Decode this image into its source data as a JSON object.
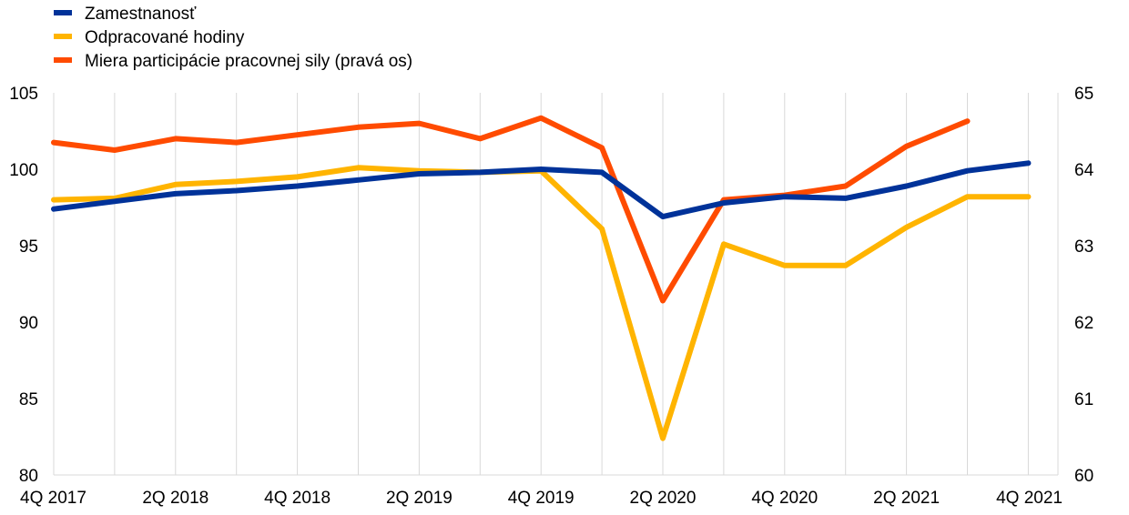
{
  "chart_data": {
    "type": "line",
    "title": "",
    "xlabel": "",
    "ylabel": "",
    "categories": [
      "4Q 2017",
      "1Q 2018",
      "2Q 2018",
      "3Q 2018",
      "4Q 2018",
      "1Q 2019",
      "2Q 2019",
      "3Q 2019",
      "4Q 2019",
      "1Q 2020",
      "2Q 2020",
      "3Q 2020",
      "4Q 2020",
      "1Q 2021",
      "2Q 2021",
      "3Q 2021",
      "4Q 2021"
    ],
    "x_tick_labels": [
      "4Q 2017",
      "2Q 2018",
      "4Q 2018",
      "2Q 2019",
      "4Q 2019",
      "2Q 2020",
      "4Q 2020",
      "2Q 2021",
      "4Q 2021"
    ],
    "ylim_left": [
      80,
      105
    ],
    "yticks_left": [
      "80",
      "85",
      "90",
      "95",
      "100",
      "105"
    ],
    "ylim_right": [
      60,
      65
    ],
    "yticks_right": [
      "60",
      "61",
      "62",
      "63",
      "64",
      "65"
    ],
    "grid": "vertical",
    "legend_position": "top-left",
    "series": [
      {
        "name": "Zamestnanosť",
        "axis": "left",
        "color": "#003299",
        "values": [
          97.4,
          97.9,
          98.4,
          98.6,
          98.9,
          99.3,
          99.7,
          99.8,
          100.0,
          99.8,
          96.9,
          97.8,
          98.2,
          98.1,
          98.9,
          99.9,
          100.4
        ]
      },
      {
        "name": "Odpracované hodiny",
        "axis": "left",
        "color": "#FFB400",
        "values": [
          98.0,
          98.1,
          99.0,
          99.2,
          99.5,
          100.1,
          99.9,
          99.8,
          99.9,
          96.1,
          82.4,
          95.1,
          93.7,
          93.7,
          96.2,
          98.2,
          98.2
        ]
      },
      {
        "name": "Miera participácie pracovnej sily (pravá os)",
        "axis": "right",
        "color": "#FF4B00",
        "values": [
          64.35,
          64.25,
          64.4,
          64.35,
          64.45,
          64.55,
          64.6,
          64.4,
          64.67,
          64.28,
          62.28,
          63.6,
          63.66,
          63.78,
          64.3,
          64.63,
          null
        ]
      }
    ]
  }
}
